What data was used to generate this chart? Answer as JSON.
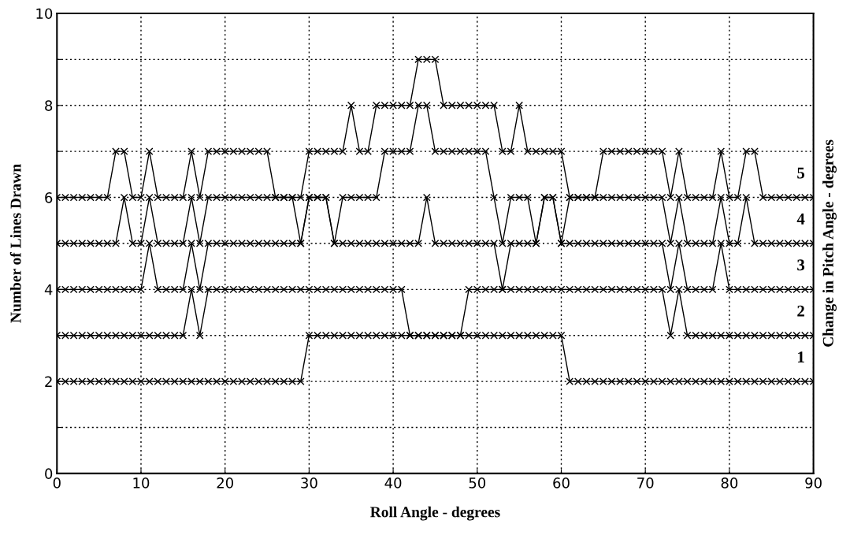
{
  "chart_data": {
    "type": "line",
    "xlabel": "Roll Angle - degrees",
    "ylabel": "Number of Lines Drawn",
    "y2label": "Change in Pitch Angle - degrees",
    "x": [
      0,
      1,
      2,
      3,
      4,
      5,
      6,
      7,
      8,
      9,
      10,
      11,
      12,
      13,
      14,
      15,
      16,
      17,
      18,
      19,
      20,
      21,
      22,
      23,
      24,
      25,
      26,
      27,
      28,
      29,
      30,
      31,
      32,
      33,
      34,
      35,
      36,
      37,
      38,
      39,
      40,
      41,
      42,
      43,
      44,
      45,
      46,
      47,
      48,
      49,
      50,
      51,
      52,
      53,
      54,
      55,
      56,
      57,
      58,
      59,
      60,
      61,
      62,
      63,
      64,
      65,
      66,
      67,
      68,
      69,
      70,
      71,
      72,
      73,
      74,
      75,
      76,
      77,
      78,
      79,
      80,
      81,
      82,
      83,
      84,
      85,
      86,
      87,
      88,
      89,
      90
    ],
    "series": [
      {
        "name": "1",
        "color": "#000000",
        "values": [
          2,
          2,
          2,
          2,
          2,
          2,
          2,
          2,
          2,
          2,
          2,
          2,
          2,
          2,
          2,
          2,
          2,
          2,
          2,
          2,
          2,
          2,
          2,
          2,
          2,
          2,
          2,
          2,
          2,
          2,
          3,
          3,
          3,
          3,
          3,
          3,
          3,
          3,
          3,
          3,
          3,
          3,
          3,
          3,
          3,
          3,
          3,
          3,
          3,
          3,
          3,
          3,
          3,
          3,
          3,
          3,
          3,
          3,
          3,
          3,
          3,
          2,
          2,
          2,
          2,
          2,
          2,
          2,
          2,
          2,
          2,
          2,
          2,
          2,
          2,
          2,
          2,
          2,
          2,
          2,
          2,
          2,
          2,
          2,
          2,
          2,
          2,
          2,
          2,
          2,
          2
        ]
      },
      {
        "name": "2",
        "color": "#000000",
        "values": [
          3,
          3,
          3,
          3,
          3,
          3,
          3,
          3,
          3,
          3,
          3,
          3,
          3,
          3,
          3,
          3,
          4,
          3,
          4,
          4,
          4,
          4,
          4,
          4,
          4,
          4,
          4,
          4,
          4,
          4,
          4,
          4,
          4,
          4,
          4,
          4,
          4,
          4,
          4,
          4,
          4,
          4,
          3,
          3,
          3,
          3,
          3,
          3,
          3,
          4,
          4,
          4,
          4,
          4,
          4,
          4,
          4,
          4,
          4,
          4,
          4,
          4,
          4,
          4,
          4,
          4,
          4,
          4,
          4,
          4,
          4,
          4,
          4,
          3,
          4,
          3,
          3,
          3,
          3,
          3,
          3,
          3,
          3,
          3,
          3,
          3,
          3,
          3,
          3,
          3,
          3
        ]
      },
      {
        "name": "3",
        "color": "#000000",
        "values": [
          4,
          4,
          4,
          4,
          4,
          4,
          4,
          4,
          4,
          4,
          4,
          5,
          4,
          4,
          4,
          4,
          5,
          4,
          5,
          5,
          5,
          5,
          5,
          5,
          5,
          5,
          5,
          5,
          5,
          5,
          6,
          6,
          6,
          5,
          5,
          5,
          5,
          5,
          5,
          5,
          5,
          5,
          5,
          5,
          6,
          5,
          5,
          5,
          5,
          5,
          5,
          5,
          5,
          4,
          5,
          5,
          5,
          5,
          6,
          6,
          5,
          5,
          5,
          5,
          5,
          5,
          5,
          5,
          5,
          5,
          5,
          5,
          5,
          4,
          5,
          4,
          4,
          4,
          4,
          5,
          4,
          4,
          4,
          4,
          4,
          4,
          4,
          4,
          4,
          4,
          4
        ]
      },
      {
        "name": "4",
        "color": "#000000",
        "values": [
          5,
          5,
          5,
          5,
          5,
          5,
          5,
          5,
          6,
          5,
          5,
          6,
          5,
          5,
          5,
          5,
          6,
          5,
          6,
          6,
          6,
          6,
          6,
          6,
          6,
          6,
          6,
          6,
          6,
          5,
          6,
          6,
          6,
          5,
          6,
          6,
          6,
          6,
          6,
          7,
          7,
          7,
          7,
          8,
          8,
          7,
          7,
          7,
          7,
          7,
          7,
          7,
          6,
          5,
          6,
          6,
          6,
          5,
          6,
          6,
          5,
          6,
          6,
          6,
          6,
          6,
          6,
          6,
          6,
          6,
          6,
          6,
          6,
          5,
          6,
          5,
          5,
          5,
          5,
          6,
          5,
          5,
          6,
          5,
          5,
          5,
          5,
          5,
          5,
          5,
          5
        ]
      },
      {
        "name": "5",
        "color": "#000000",
        "values": [
          6,
          6,
          6,
          6,
          6,
          6,
          6,
          7,
          7,
          6,
          6,
          7,
          6,
          6,
          6,
          6,
          7,
          6,
          7,
          7,
          7,
          7,
          7,
          7,
          7,
          7,
          6,
          6,
          6,
          6,
          7,
          7,
          7,
          7,
          7,
          8,
          7,
          7,
          8,
          8,
          8,
          8,
          8,
          9,
          9,
          9,
          8,
          8,
          8,
          8,
          8,
          8,
          8,
          7,
          7,
          8,
          7,
          7,
          7,
          7,
          7,
          6,
          6,
          6,
          6,
          7,
          7,
          7,
          7,
          7,
          7,
          7,
          7,
          6,
          7,
          6,
          6,
          6,
          6,
          7,
          6,
          6,
          7,
          7,
          6,
          6,
          6,
          6,
          6,
          6,
          6
        ]
      }
    ],
    "xlim": [
      0,
      90
    ],
    "xticks": [
      0,
      10,
      20,
      30,
      40,
      50,
      60,
      70,
      80,
      90
    ],
    "ylim": [
      0,
      10
    ],
    "yticks": [
      0,
      {
        "value": 1,
        "label": null
      },
      2,
      {
        "value": 3,
        "label": null
      },
      4,
      {
        "value": 5,
        "label": null
      },
      6,
      {
        "value": 7,
        "label": null
      },
      8,
      {
        "value": 9,
        "label": null
      },
      10
    ],
    "grid": true,
    "marker": "cross",
    "line_style": "solid",
    "legend": false
  }
}
